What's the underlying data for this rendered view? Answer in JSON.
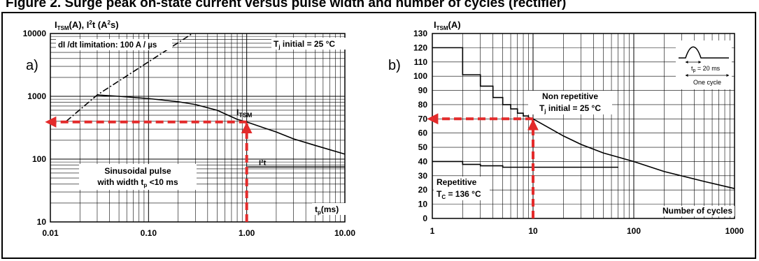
{
  "caption": "Figure 2. Surge peak on-state current versus pulse width and number of cycles (rectifier)",
  "chart_data": [
    {
      "type": "line",
      "panel_label": "a)",
      "scale": "log-log",
      "xlim": [
        0.01,
        10
      ],
      "ylim": [
        10,
        10000
      ],
      "x_ticks": [
        "0.01",
        "0.10",
        "1.00",
        "10.00"
      ],
      "y_ticks": [
        "10",
        "100",
        "1000",
        "10000"
      ],
      "ylabel": {
        "main": "I",
        "sub": "TSM",
        "rest": "(A), I",
        "sup": "2",
        "rest2": "t (A",
        "sup2": "2",
        "rest3": "s)"
      },
      "xlabel": {
        "main": "t",
        "sub": "p",
        "rest": "(ms)"
      },
      "annotations": {
        "didt": "dI /dt limitation: 100 A / µs",
        "tj_main": "T",
        "tj_sub": "j",
        "tj_rest": " initial = 25 °C",
        "itsm_main": "I",
        "itsm_sub": "TSM",
        "i2t": "I²t",
        "sine1": "Sinusoidal pulse",
        "sine2_main": "with width t",
        "sine2_sub": "p",
        "sine2_rest": " <10 ms"
      },
      "grid": true,
      "series": [
        {
          "style": "dash-dot",
          "x": [
            0.0145,
            0.03,
            0.28
          ],
          "y": [
            400,
            1050,
            10000
          ]
        },
        {
          "style": "solid",
          "x": [
            0.03,
            0.05,
            0.1,
            0.2,
            0.3,
            0.5,
            0.8,
            1.0,
            2.0,
            3.0,
            5.0,
            10.0
          ],
          "y": [
            1050,
            1000,
            920,
            820,
            740,
            600,
            430,
            390,
            270,
            210,
            165,
            120
          ]
        },
        {
          "style": "solid",
          "x": [
            1.0,
            10.0
          ],
          "y": [
            75,
            75
          ]
        }
      ],
      "highlight": {
        "x": 1.0,
        "y": 390,
        "color": "#e32b2b"
      }
    },
    {
      "type": "line",
      "panel_label": "b)",
      "scale": "log-x",
      "xlim": [
        1,
        1000
      ],
      "ylim": [
        0,
        130
      ],
      "x_ticks": [
        "1",
        "10",
        "100",
        "1000"
      ],
      "y_ticks": [
        "0",
        "10",
        "20",
        "30",
        "40",
        "50",
        "60",
        "70",
        "80",
        "90",
        "100",
        "110",
        "120",
        "130"
      ],
      "ylabel": {
        "main": "I",
        "sub": "TSM",
        "rest": "(A)"
      },
      "xlabel": "Number of cycles",
      "annotations": {
        "nonrep": "Non repetitive",
        "tj_main": "T",
        "tj_sub": "j",
        "tj_rest": " initial = 25 °C",
        "rep": "Repetitive",
        "tc_main": "T",
        "tc_sub": "C",
        "tc_rest": " = 136 °C",
        "inset_tp": "t",
        "inset_tp_sub": "p",
        "inset_tp_rest": " = 20 ms",
        "inset_cycle": "One cycle"
      },
      "grid": true,
      "series": [
        {
          "name": "Non repetitive",
          "style": "step-curve",
          "x": [
            1,
            2,
            2,
            3,
            3,
            4,
            4,
            5,
            5,
            6,
            6,
            7,
            7,
            8,
            8,
            9,
            9,
            10,
            20,
            30,
            50,
            100,
            200,
            500,
            1000
          ],
          "y": [
            120,
            120,
            101,
            101,
            93,
            93,
            85,
            85,
            80,
            80,
            77,
            77,
            74,
            74,
            72,
            72,
            71,
            70,
            58,
            52,
            46,
            40,
            33,
            26,
            21
          ]
        },
        {
          "name": "Repetitive",
          "style": "step",
          "x": [
            1,
            2,
            2,
            3,
            3,
            5,
            5,
            70
          ],
          "y": [
            40,
            40,
            38,
            38,
            37,
            37,
            36,
            36
          ]
        }
      ],
      "highlight": {
        "x": 10,
        "y": 70,
        "color": "#e32b2b"
      }
    }
  ]
}
